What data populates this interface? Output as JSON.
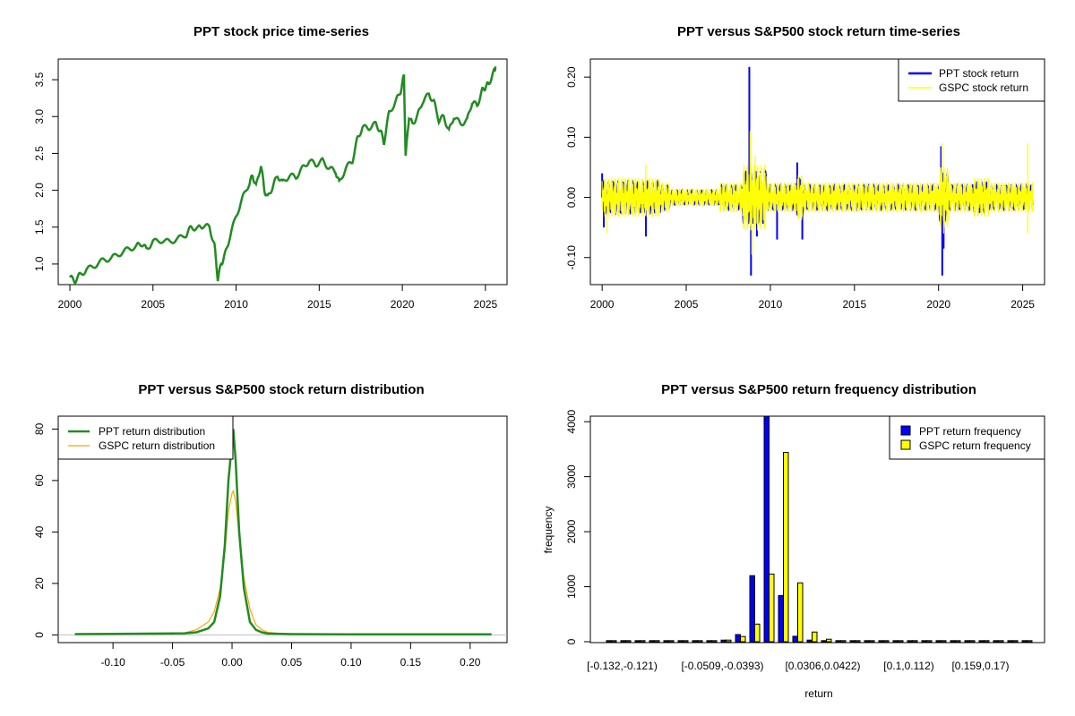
{
  "chart_data": [
    {
      "type": "line",
      "title": "PPT stock price time-series",
      "xlabel": "",
      "ylabel": "",
      "xlim": [
        1999.3,
        2026.3
      ],
      "ylim": [
        0.72,
        3.78
      ],
      "xticks": [
        2000,
        2005,
        2010,
        2015,
        2020,
        2025
      ],
      "yticks": [
        "1.0",
        "1.5",
        "2.0",
        "2.5",
        "3.0",
        "3.5"
      ],
      "color": "#228B22",
      "series": [
        {
          "name": "PPT price",
          "x": [
            2000.0,
            2000.3,
            2000.6,
            2001.0,
            2001.5,
            2002.0,
            2002.5,
            2003.0,
            2003.5,
            2004.0,
            2004.3,
            2004.6,
            2005.0,
            2005.5,
            2006.0,
            2006.5,
            2007.0,
            2007.3,
            2007.7,
            2008.0,
            2008.4,
            2008.7,
            2008.9,
            2009.1,
            2009.3,
            2009.6,
            2010.0,
            2010.4,
            2010.8,
            2011.0,
            2011.2,
            2011.5,
            2011.7,
            2011.9,
            2012.2,
            2012.5,
            2012.8,
            2013.2,
            2013.6,
            2014.0,
            2014.4,
            2014.8,
            2015.2,
            2015.6,
            2016.0,
            2016.2,
            2016.6,
            2017.0,
            2017.3,
            2017.6,
            2018.0,
            2018.4,
            2018.7,
            2018.9,
            2019.2,
            2019.6,
            2019.9,
            2020.1,
            2020.2,
            2020.4,
            2020.6,
            2020.9,
            2021.2,
            2021.6,
            2021.9,
            2022.2,
            2022.5,
            2022.8,
            2023.1,
            2023.5,
            2023.9,
            2024.2,
            2024.5,
            2024.8,
            2025.0,
            2025.2,
            2025.5,
            2025.6
          ],
          "y": [
            0.82,
            0.77,
            0.85,
            0.92,
            0.98,
            1.05,
            1.08,
            1.14,
            1.2,
            1.24,
            1.28,
            1.2,
            1.3,
            1.32,
            1.3,
            1.34,
            1.4,
            1.5,
            1.48,
            1.52,
            1.5,
            1.25,
            0.8,
            1.0,
            1.1,
            1.35,
            1.65,
            1.9,
            2.1,
            2.2,
            2.05,
            2.35,
            2.0,
            1.9,
            2.05,
            2.2,
            2.1,
            2.2,
            2.18,
            2.3,
            2.4,
            2.35,
            2.4,
            2.3,
            2.25,
            2.1,
            2.3,
            2.4,
            2.7,
            2.85,
            2.85,
            2.9,
            2.8,
            2.65,
            3.05,
            3.2,
            3.35,
            3.55,
            2.45,
            3.0,
            2.9,
            3.0,
            3.2,
            3.3,
            3.2,
            2.95,
            3.0,
            2.8,
            3.0,
            2.9,
            2.95,
            3.2,
            3.15,
            3.35,
            3.4,
            3.45,
            3.6,
            3.68
          ]
        }
      ]
    },
    {
      "type": "line",
      "title": "PPT versus S&P500 stock return time-series",
      "xlabel": "",
      "ylabel": "",
      "xlim": [
        1999.3,
        2026.3
      ],
      "ylim": [
        -0.145,
        0.23
      ],
      "xticks": [
        2000,
        2005,
        2010,
        2015,
        2020,
        2025
      ],
      "yticks": [
        "-0.10",
        "0.00",
        "0.10",
        "0.20"
      ],
      "legend": {
        "position": "top-right",
        "entries": [
          {
            "label": "PPT stock return",
            "color": "#0000FF"
          },
          {
            "label": "GSPC stock return",
            "color": "#FFFF00"
          }
        ]
      },
      "series": [
        {
          "name": "PPT stock return",
          "color": "#0000FF",
          "spikes": [
            [
              2000.0,
              0.04
            ],
            [
              2000.1,
              -0.05
            ],
            [
              2002.6,
              -0.065
            ],
            [
              2008.75,
              0.217
            ],
            [
              2008.85,
              -0.13
            ],
            [
              2009.2,
              -0.065
            ],
            [
              2010.4,
              -0.07
            ],
            [
              2011.6,
              0.058
            ],
            [
              2011.9,
              -0.07
            ],
            [
              2020.15,
              0.085
            ],
            [
              2020.22,
              -0.13
            ],
            [
              2020.3,
              -0.085
            ]
          ],
          "band": 0.02
        },
        {
          "name": "GSPC stock return",
          "color": "#FFFF00",
          "spikes": [
            [
              2000.3,
              -0.06
            ],
            [
              2002.6,
              0.055
            ],
            [
              2008.8,
              0.11
            ],
            [
              2008.9,
              -0.095
            ],
            [
              2009.1,
              0.07
            ],
            [
              2020.2,
              0.09
            ],
            [
              2020.3,
              -0.06
            ],
            [
              2025.3,
              0.09
            ],
            [
              2025.3,
              -0.06
            ]
          ],
          "band": 0.025
        }
      ]
    },
    {
      "type": "line",
      "title": "PPT versus S&P500 stock return distribution",
      "xlabel": "",
      "ylabel": "",
      "xlim": [
        -0.146,
        0.231
      ],
      "ylim": [
        -3,
        85
      ],
      "xticks": [
        "-0.10",
        "-0.05",
        "0.00",
        "0.05",
        "0.10",
        "0.15",
        "0.20"
      ],
      "yticks": [
        "0",
        "20",
        "40",
        "60",
        "80"
      ],
      "legend": {
        "position": "top-left",
        "entries": [
          {
            "label": "PPT return distribution",
            "color": "#228B22"
          },
          {
            "label": "GSPC return distribution",
            "color": "#FFA500"
          }
        ]
      },
      "series": [
        {
          "name": "PPT return distribution",
          "color": "#228B22",
          "x": [
            -0.132,
            -0.06,
            -0.04,
            -0.03,
            -0.02,
            -0.015,
            -0.01,
            -0.006,
            -0.003,
            0.0,
            0.001,
            0.003,
            0.006,
            0.01,
            0.015,
            0.02,
            0.025,
            0.03,
            0.05,
            0.1,
            0.15,
            0.218
          ],
          "y": [
            0.3,
            0.5,
            0.6,
            1,
            2.5,
            5,
            15,
            35,
            60,
            75,
            80,
            68,
            40,
            18,
            5,
            2,
            1,
            0.5,
            0.3,
            0.2,
            0.2,
            0.2
          ]
        },
        {
          "name": "GSPC return distribution",
          "color": "#FFA500",
          "x": [
            -0.06,
            -0.04,
            -0.03,
            -0.02,
            -0.015,
            -0.01,
            -0.006,
            -0.003,
            0.0,
            0.001,
            0.003,
            0.006,
            0.01,
            0.015,
            0.02,
            0.025,
            0.03,
            0.04,
            0.07,
            0.1
          ],
          "y": [
            0.2,
            0.8,
            2,
            5,
            9,
            18,
            32,
            48,
            55,
            56,
            52,
            38,
            22,
            10,
            4,
            2,
            1,
            0.5,
            0.1,
            0
          ]
        }
      ]
    },
    {
      "type": "bar",
      "title": "PPT versus S&P500 return frequency distribution",
      "xlabel": "return",
      "ylabel": "frequency",
      "ylim": [
        0,
        4100
      ],
      "yticks": [
        "0",
        "1000",
        "2000",
        "3000",
        "4000"
      ],
      "xtick_labels": [
        "[-0.132,-0.121)",
        "[-0.0509,-0.0393)",
        "[0.0306,0.0422)",
        "[0.1,0.112)",
        "[0.159,0.17)"
      ],
      "xtick_label_bins": [
        0,
        7,
        14,
        20,
        25
      ],
      "bin_count": 30,
      "legend": {
        "position": "top-right",
        "entries": [
          {
            "label": "PPT return frequency",
            "color": "#0000FF"
          },
          {
            "label": "GSPC return frequency",
            "color": "#FFFF00"
          }
        ]
      },
      "series": [
        {
          "name": "PPT return frequency",
          "color": "#0000FF",
          "values": [
            1,
            1,
            1,
            2,
            1,
            4,
            6,
            15,
            30,
            130,
            1200,
            4100,
            840,
            100,
            30,
            6,
            5,
            1,
            1,
            1,
            1,
            1,
            1,
            1,
            1,
            1,
            1,
            1,
            1,
            1
          ]
        },
        {
          "name": "GSPC return frequency",
          "color": "#FFFF00",
          "values": [
            0,
            0,
            0,
            0,
            0,
            2,
            3,
            8,
            30,
            95,
            320,
            1230,
            3440,
            1070,
            175,
            45,
            5,
            2,
            0,
            0,
            0,
            0,
            0,
            0,
            0,
            0,
            0,
            0,
            0,
            0
          ]
        }
      ]
    }
  ]
}
